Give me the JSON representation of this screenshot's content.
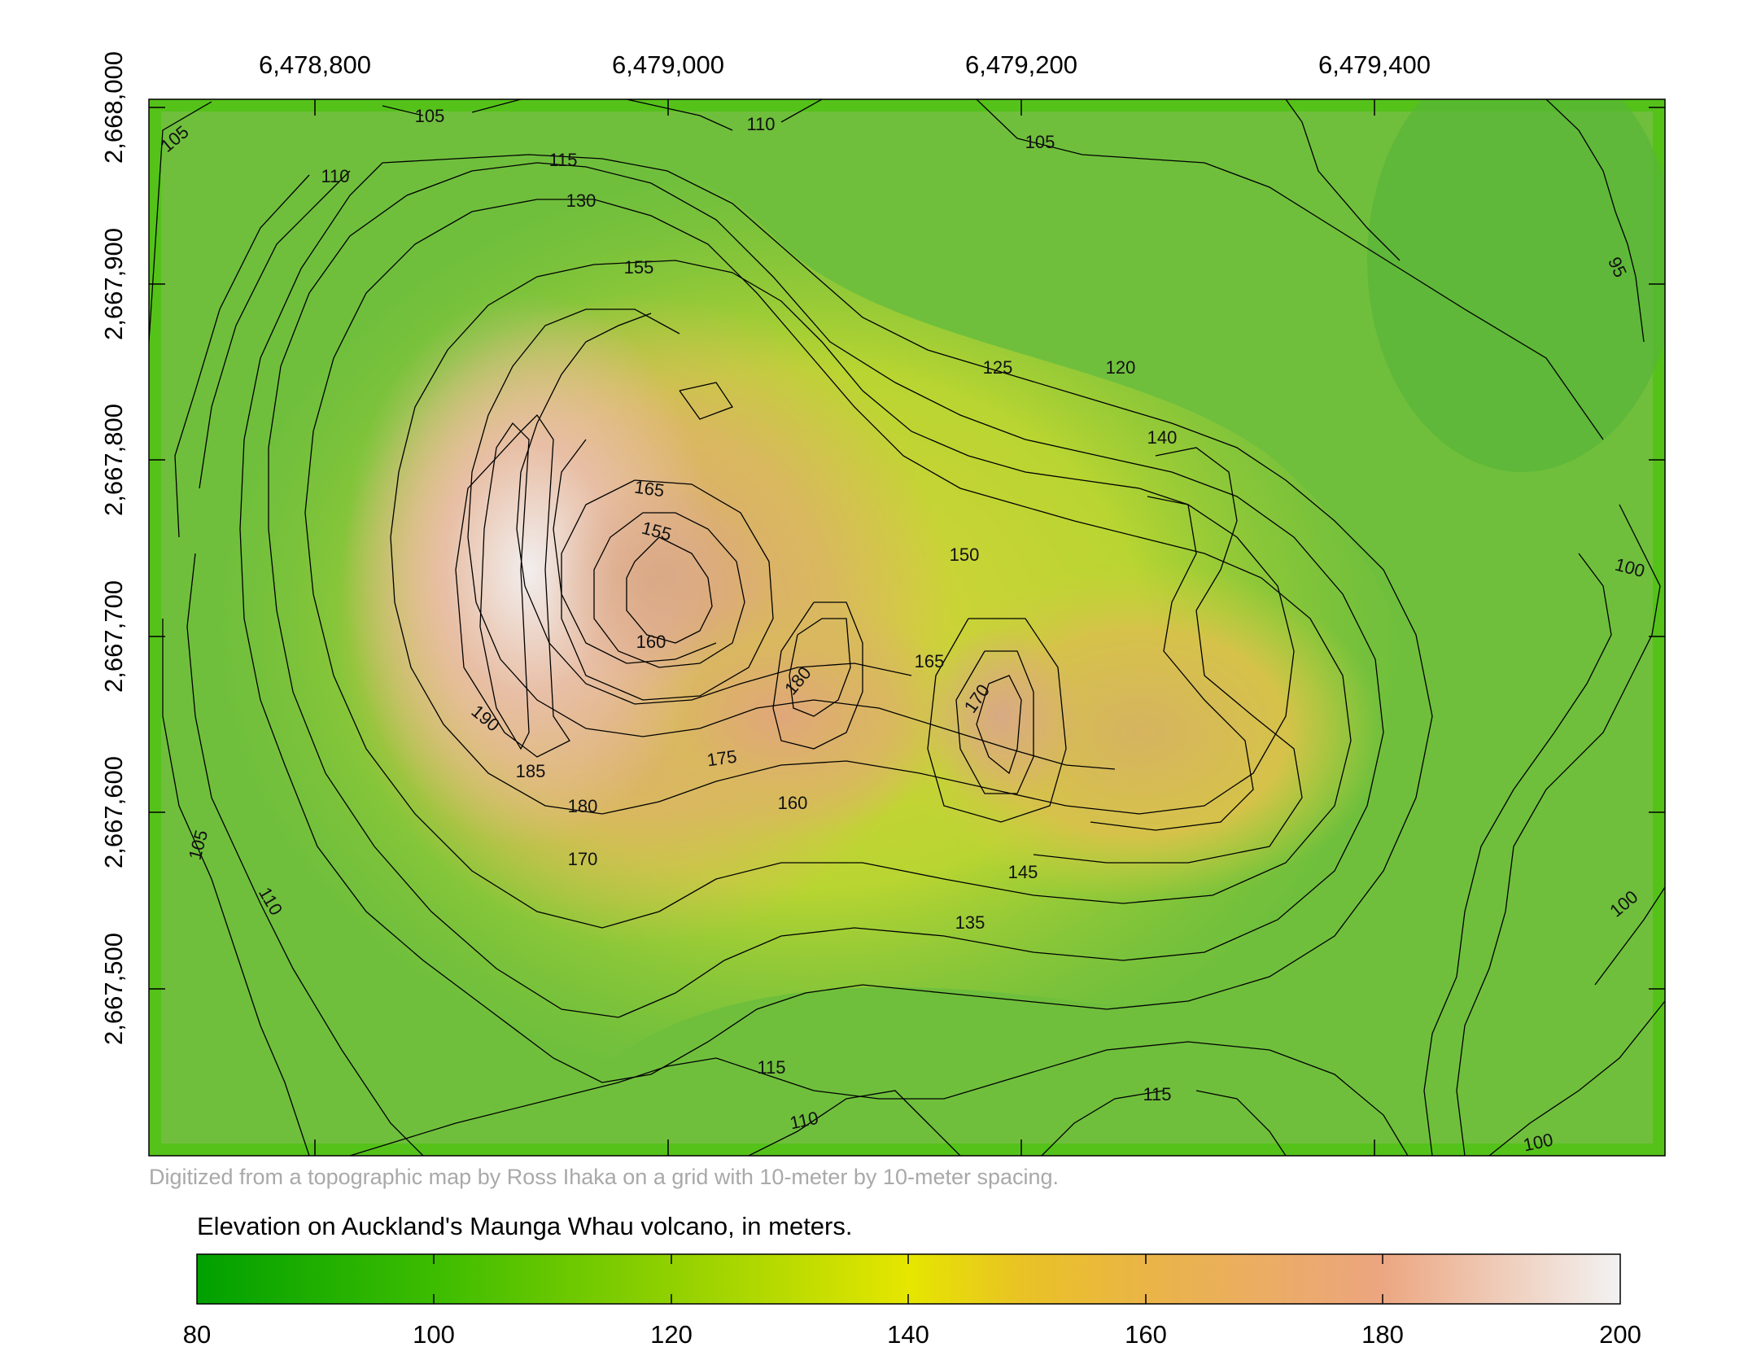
{
  "map": {
    "credit": "Digitized from a topographic map by Ross Ihaka on a grid with 10-meter by 10-meter spacing.",
    "x_ticks": [
      "6,478,800",
      "6,479,000",
      "6,479,200",
      "6,479,400"
    ],
    "y_ticks": [
      "2,668,000",
      "2,667,900",
      "2,667,800",
      "2,667,700",
      "2,667,600",
      "2,667,500"
    ],
    "contour_labels": [
      "105",
      "105",
      "110",
      "110",
      "105",
      "115",
      "130",
      "155",
      "95",
      "125",
      "120",
      "140",
      "165",
      "155",
      "150",
      "100",
      "160",
      "180",
      "165",
      "170",
      "190",
      "185",
      "175",
      "180",
      "160",
      "170",
      "145",
      "105",
      "110",
      "135",
      "100",
      "115",
      "115",
      "110",
      "100"
    ],
    "colors": {
      "low": "#00a000",
      "mid": "#e6e600",
      "high_mid": "#ecb176",
      "high": "#f2f2f2",
      "contour": "#000000",
      "frame": "#000000"
    }
  },
  "legend": {
    "title": "Elevation on Auckland's Maunga Whau volcano, in meters.",
    "ticks": [
      "80",
      "100",
      "120",
      "140",
      "160",
      "180",
      "200"
    ],
    "min": 80,
    "max": 200
  }
}
